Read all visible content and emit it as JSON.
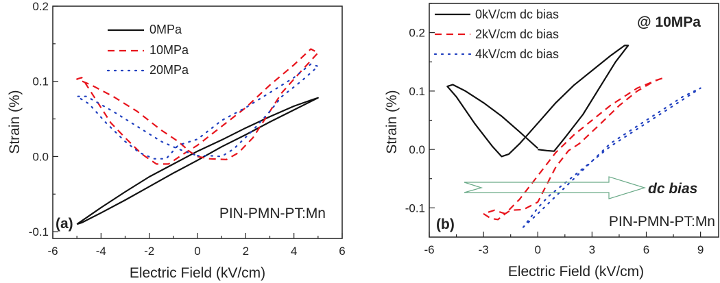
{
  "chart_data": [
    {
      "type": "line",
      "panel_label": "(a)",
      "xlabel": "Electric Field (kV/cm)",
      "ylabel": "Strain (%)",
      "xlim": [
        -6,
        6
      ],
      "ylim": [
        -0.109,
        0.2
      ],
      "xticks": [
        -6,
        -4,
        -2,
        0,
        2,
        4,
        6
      ],
      "xtick_labels": [
        "-6",
        "-4",
        "-2",
        "0",
        "2",
        "4",
        "6"
      ],
      "yticks": [
        -0.1,
        0.0,
        0.1,
        0.2
      ],
      "ytick_labels": [
        "-0.1",
        "0.0",
        "0.1",
        "0.2"
      ],
      "xminor": 1,
      "yminor": 0.05,
      "annotation": "PIN-PMN-PT:Mn",
      "legend_position": "top-left",
      "series": [
        {
          "name": "0MPa",
          "color": "#111111",
          "style": "solid",
          "x": [
            -5,
            -4,
            -3,
            -2,
            -1,
            0,
            1,
            2,
            3,
            4,
            4.8,
            5,
            4,
            3,
            2,
            1,
            0,
            -1,
            -2,
            -3,
            -4,
            -4.8,
            -5
          ],
          "y": [
            -0.09,
            -0.068,
            -0.047,
            -0.027,
            -0.01,
            0.007,
            0.022,
            0.038,
            0.053,
            0.067,
            0.076,
            0.078,
            0.062,
            0.046,
            0.029,
            0.013,
            -0.005,
            -0.022,
            -0.04,
            -0.058,
            -0.075,
            -0.088,
            -0.09
          ]
        },
        {
          "name": "10MPa",
          "color": "#e8141c",
          "style": "dashed",
          "x": [
            0,
            0.5,
            1.2,
            1.7,
            2.3,
            2.8,
            3.5,
            4.2,
            5,
            4.7,
            4,
            3,
            2,
            1,
            0,
            -0.6,
            -1.2,
            -1.7,
            -2.3,
            -3,
            -3.6,
            -4.2,
            -4.8,
            -5,
            -4.4,
            -3.5,
            -2.5,
            -1.5,
            -0.8,
            -0.3,
            0
          ],
          "y": [
            0,
            -0.003,
            -0.004,
            0.005,
            0.025,
            0.05,
            0.085,
            0.11,
            0.138,
            0.143,
            0.122,
            0.095,
            0.065,
            0.04,
            0.015,
            0.003,
            -0.01,
            -0.01,
            0.003,
            0.025,
            0.045,
            0.075,
            0.105,
            0.103,
            0.095,
            0.08,
            0.06,
            0.035,
            0.02,
            0.006,
            0
          ]
        },
        {
          "name": "20MPa",
          "color": "#1f3fbf",
          "style": "dotted",
          "x": [
            0,
            0.5,
            1,
            1.5,
            2.3,
            3,
            3.5,
            4.3,
            5,
            4.7,
            4,
            3,
            2,
            1,
            0,
            -0.8,
            -1.3,
            -1.8,
            -2.4,
            -3,
            -3.8,
            -4.5,
            -5,
            -4.6,
            -3.5,
            -2.5,
            -1.5,
            -0.8,
            0
          ],
          "y": [
            0.001,
            0.001,
            0,
            0.01,
            0.035,
            0.06,
            0.08,
            0.1,
            0.12,
            0.123,
            0.105,
            0.085,
            0.065,
            0.048,
            0.023,
            0.015,
            -0.003,
            -0.003,
            0.005,
            0.02,
            0.045,
            0.07,
            0.08,
            0.08,
            0.06,
            0.04,
            0.02,
            0.01,
            0.001
          ]
        }
      ]
    },
    {
      "type": "line",
      "panel_label": "(b)",
      "xlabel": "Electric Field (kV/cm)",
      "ylabel": "Strain (%)",
      "xlim": [
        -6,
        10
      ],
      "ylim": [
        -0.15,
        0.25
      ],
      "xticks": [
        -6,
        -3,
        0,
        3,
        6,
        9
      ],
      "xtick_labels": [
        "-6",
        "-3",
        "0",
        "3",
        "6",
        "9"
      ],
      "yticks": [
        -0.1,
        0.0,
        0.1,
        0.2
      ],
      "ytick_labels": [
        "-0.1",
        "0.0",
        "0.1",
        "0.2"
      ],
      "xminor": 1.5,
      "yminor": 0.05,
      "annotation": "PIN-PMN-PT:Mn",
      "condition": "@ 10MPa",
      "arrow_label": "dc bias",
      "arrow_color": "#6aaa88",
      "legend_position": "top-left",
      "series": [
        {
          "name": "0kV/cm dc bias",
          "color": "#111111",
          "style": "solid",
          "x": [
            0,
            0.5,
            0.9,
            1.5,
            2.5,
            3.5,
            4.3,
            5,
            4.8,
            4,
            3,
            2,
            1,
            0,
            -1,
            -1.6,
            -2,
            -2.5,
            -3.5,
            -4.5,
            -5,
            -4.7,
            -4,
            -3,
            -2,
            -1,
            0
          ],
          "y": [
            0,
            -0.002,
            -0.003,
            0.02,
            0.06,
            0.11,
            0.15,
            0.178,
            0.178,
            0.16,
            0.135,
            0.11,
            0.08,
            0.045,
            0.01,
            -0.008,
            -0.012,
            0.005,
            0.045,
            0.09,
            0.108,
            0.111,
            0.1,
            0.08,
            0.057,
            0.03,
            0.002
          ]
        },
        {
          "name": "2kV/cm dc bias",
          "color": "#e8141c",
          "style": "dashed",
          "x": [
            -3,
            -2.6,
            -2.2,
            -1.8,
            -1.5,
            -0.8,
            -0.3,
            0,
            0.5,
            1,
            1.7,
            2.3,
            3.5,
            4.5,
            5.5,
            6.5,
            7,
            6.7,
            5.5,
            4,
            3,
            2,
            1,
            0,
            -1,
            -1.8,
            -2.4,
            -3
          ],
          "y": [
            -0.11,
            -0.118,
            -0.12,
            -0.11,
            -0.104,
            -0.103,
            -0.095,
            -0.09,
            -0.06,
            -0.03,
            -0.002,
            0.01,
            0.045,
            0.075,
            0.1,
            0.118,
            0.123,
            0.12,
            0.105,
            0.075,
            0.05,
            0.025,
            -0.005,
            -0.045,
            -0.085,
            -0.11,
            -0.104,
            -0.11
          ]
        },
        {
          "name": "4kV/cm dc bias",
          "color": "#1f3fbf",
          "style": "dotted",
          "x": [
            -0.8,
            0,
            1,
            2,
            3,
            4,
            5,
            6,
            7,
            8,
            9,
            8,
            7,
            6,
            5,
            4,
            3,
            2,
            1.2,
            0.6,
            0,
            -0.8
          ],
          "y": [
            -0.133,
            -0.11,
            -0.08,
            -0.05,
            -0.02,
            0.01,
            0.03,
            0.05,
            0.07,
            0.09,
            0.105,
            0.085,
            0.065,
            0.045,
            0.025,
            0.005,
            -0.02,
            -0.045,
            -0.065,
            -0.08,
            -0.1,
            -0.133
          ]
        }
      ]
    }
  ]
}
